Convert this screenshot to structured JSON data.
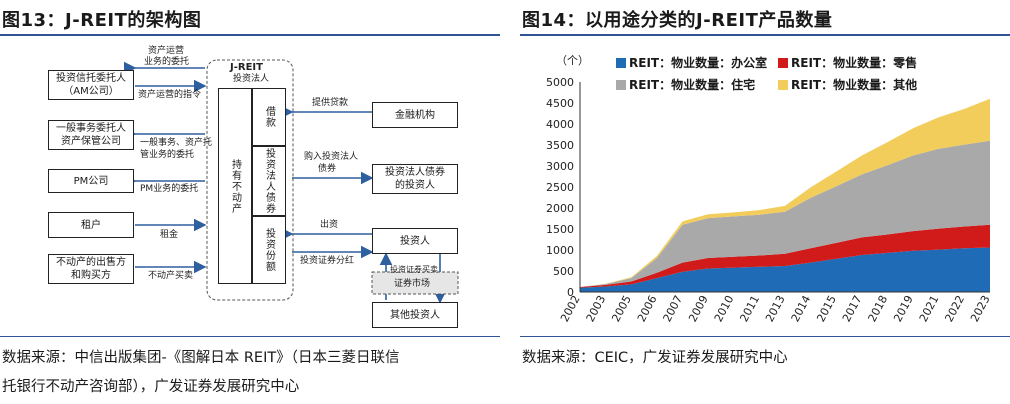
{
  "left": {
    "title": "图13：J-REIT的架构图",
    "source_line1": "数据来源：中信出版集团-《图解日本 REIT》（日本三菱日联信",
    "source_line2": "托银行不动产咨询部），广发证券发展研究中心",
    "diagram": {
      "center_title": "J-REIT",
      "center_subtitle": "投资法人",
      "left_boxes": [
        "投资信托委托人",
        "（AM公司）",
        "一般事务委托人",
        "资产保管公司",
        "PM公司",
        "租户",
        "不动产的出售方",
        "和购买方"
      ],
      "left_arrow_labels": [
        "资产运营",
        "业务的委托",
        "资产运营的指令",
        "一般事务、资产托",
        "管业务的委托",
        "PM业务的委托",
        "租金",
        "不动产买卖"
      ],
      "hold_label": "持有不动产",
      "inner_cells": [
        "借款",
        "投资法人债券",
        "投资份额"
      ],
      "right_boxes": [
        "金融机构",
        "投资法人债券",
        "的投资人",
        "投资人",
        "其他投资人"
      ],
      "right_arrow_labels": [
        "提供贷款",
        "购入投资法人",
        "债券",
        "出资",
        "投资证券分红"
      ],
      "market_inner": "投资证券买卖",
      "market_label": "证券市场"
    }
  },
  "right": {
    "title": "图14：以用途分类的J-REIT产品数量",
    "source": "数据来源：CEIC，广发证券发展研究中心"
  },
  "chart_data": {
    "type": "area",
    "title": "图14：以用途分类的J-REIT产品数量",
    "unit_label": "（个）",
    "ylim": [
      0,
      5000
    ],
    "yticks": [
      "0",
      "500",
      "1000",
      "1500",
      "2000",
      "2500",
      "3000",
      "3500",
      "4000",
      "4500",
      "5000"
    ],
    "x": [
      "2002",
      "2003",
      "2005",
      "2006",
      "2007",
      "2009",
      "2010",
      "2011",
      "2013",
      "2014",
      "2015",
      "2017",
      "2018",
      "2019",
      "2021",
      "2022",
      "2023"
    ],
    "stacked": true,
    "legend_position": "top",
    "series": [
      {
        "name": "REIT：物业数量：办公室",
        "color": "#1f6bb5",
        "values": [
          100,
          130,
          180,
          330,
          480,
          560,
          580,
          600,
          620,
          700,
          790,
          880,
          930,
          980,
          1010,
          1040,
          1060
        ]
      },
      {
        "name": "REIT：物业数量：零售",
        "color": "#d11a1a",
        "values": [
          20,
          40,
          70,
          130,
          220,
          250,
          260,
          270,
          290,
          340,
          380,
          420,
          440,
          470,
          500,
          520,
          540
        ]
      },
      {
        "name": "REIT：物业数量：住宅",
        "color": "#a9a9a9",
        "values": [
          0,
          20,
          80,
          350,
          900,
          950,
          960,
          970,
          1000,
          1200,
          1350,
          1500,
          1650,
          1800,
          1900,
          1950,
          2000
        ]
      },
      {
        "name": "REIT：物业数量：其他",
        "color": "#f2cd5c",
        "values": [
          0,
          5,
          20,
          50,
          80,
          90,
          95,
          110,
          140,
          250,
          350,
          450,
          550,
          650,
          750,
          850,
          1000
        ]
      }
    ]
  }
}
